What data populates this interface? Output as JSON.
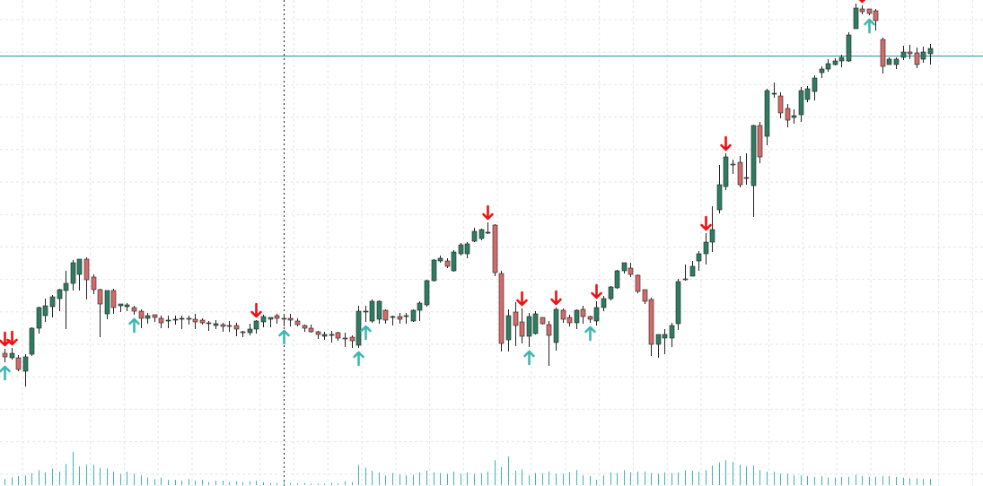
{
  "colors": {
    "background": "#ffffff",
    "grid": "#e6e6e6",
    "bull": "#2e7d62",
    "bear": "#d46a6a",
    "wick": "#222222",
    "volume": "#3fb3b8",
    "buy_arrow": "#3bb8b0",
    "sell_arrow": "#ee1111",
    "hline": "#2b8fb0",
    "session": "#222222"
  },
  "chart_data": {
    "type": "candlestick",
    "title": "",
    "xlabel": "",
    "ylabel": "",
    "grid": true,
    "ylim": [
      0,
      540
    ],
    "volume_max": 50,
    "hline": 480,
    "session_separators": [
      42,
      148
    ],
    "candles": [
      [
        1,
        148,
        144,
        153,
        138,
        8
      ],
      [
        2,
        143,
        148,
        154,
        141,
        10
      ],
      [
        3,
        143,
        130,
        146,
        128,
        12
      ],
      [
        4,
        128,
        144,
        147,
        111,
        13
      ],
      [
        5,
        147,
        176,
        177,
        145,
        16
      ],
      [
        6,
        176,
        199,
        200,
        170,
        20
      ],
      [
        7,
        190,
        201,
        209,
        183,
        17
      ],
      [
        8,
        200,
        211,
        213,
        188,
        22
      ],
      [
        9,
        209,
        219,
        220,
        195,
        18
      ],
      [
        10,
        218,
        226,
        240,
        175,
        28
      ],
      [
        11,
        226,
        249,
        252,
        218,
        44
      ],
      [
        12,
        236,
        253,
        253,
        218,
        25
      ],
      [
        13,
        253,
        230,
        255,
        208,
        27
      ],
      [
        14,
        233,
        219,
        236,
        214,
        27
      ],
      [
        15,
        219,
        203,
        220,
        166,
        23
      ],
      [
        16,
        192,
        218,
        218,
        186,
        22
      ],
      [
        17,
        218,
        199,
        220,
        192,
        18
      ],
      [
        18,
        201,
        203,
        202,
        194,
        15
      ],
      [
        19,
        200,
        202,
        204,
        195,
        18
      ],
      [
        20,
        199,
        195,
        201,
        191,
        15
      ],
      [
        21,
        195,
        187,
        197,
        176,
        13
      ],
      [
        22,
        187,
        190,
        193,
        181,
        10
      ],
      [
        23,
        191,
        188,
        191,
        183,
        8
      ],
      [
        24,
        187,
        182,
        190,
        176,
        10
      ],
      [
        25,
        184,
        185,
        190,
        176,
        7
      ],
      [
        26,
        185,
        186,
        190,
        180,
        7
      ],
      [
        27,
        186,
        187,
        190,
        175,
        6
      ],
      [
        28,
        187,
        186,
        190,
        180,
        8
      ],
      [
        29,
        186,
        183,
        192,
        175,
        6
      ],
      [
        30,
        185,
        182,
        187,
        180,
        7
      ],
      [
        31,
        182,
        181,
        184,
        173,
        4
      ],
      [
        32,
        179,
        181,
        185,
        175,
        6
      ],
      [
        33,
        180,
        178,
        182,
        172,
        6
      ],
      [
        34,
        179,
        178,
        184,
        172,
        4
      ],
      [
        35,
        179,
        175,
        182,
        167,
        5
      ],
      [
        36,
        172,
        171,
        173,
        166,
        4
      ],
      [
        37,
        171,
        175,
        181,
        168,
        5
      ],
      [
        38,
        175,
        184,
        185,
        170,
        6
      ],
      [
        39,
        183,
        189,
        191,
        177,
        4
      ],
      [
        40,
        186,
        188,
        188,
        177,
        3
      ],
      [
        41,
        190,
        187,
        192,
        181,
        3
      ],
      [
        42,
        187,
        186,
        191,
        178,
        4
      ],
      [
        43,
        187,
        185,
        192,
        178,
        3
      ],
      [
        44,
        184,
        180,
        187,
        178,
        2
      ],
      [
        45,
        179,
        176,
        180,
        172,
        3
      ],
      [
        46,
        176,
        172,
        180,
        171,
        2
      ],
      [
        47,
        172,
        169,
        173,
        164,
        2
      ],
      [
        48,
        167,
        169,
        172,
        163,
        2
      ],
      [
        49,
        169,
        169,
        173,
        160,
        3
      ],
      [
        50,
        171,
        165,
        172,
        162,
        2
      ],
      [
        51,
        165,
        164,
        171,
        155,
        5
      ],
      [
        52,
        166,
        162,
        168,
        154,
        4
      ],
      [
        53,
        157,
        195,
        201,
        154,
        27
      ],
      [
        54,
        195,
        195,
        201,
        183,
        23
      ],
      [
        55,
        184,
        206,
        208,
        182,
        19
      ],
      [
        56,
        186,
        206,
        207,
        181,
        17
      ],
      [
        57,
        196,
        185,
        197,
        181,
        13
      ],
      [
        58,
        189,
        189,
        190,
        179,
        16
      ],
      [
        59,
        189,
        186,
        193,
        181,
        14
      ],
      [
        60,
        189,
        190,
        193,
        181,
        13
      ],
      [
        61,
        184,
        196,
        197,
        183,
        14
      ],
      [
        62,
        196,
        204,
        206,
        184,
        17
      ],
      [
        63,
        202,
        229,
        230,
        200,
        19
      ],
      [
        64,
        229,
        252,
        253,
        228,
        17
      ],
      [
        65,
        251,
        254,
        257,
        249,
        16
      ],
      [
        66,
        251,
        245,
        254,
        243,
        15
      ],
      [
        67,
        240,
        261,
        263,
        239,
        18
      ],
      [
        68,
        259,
        269,
        271,
        257,
        15
      ],
      [
        69,
        259,
        270,
        272,
        254,
        17
      ],
      [
        70,
        273,
        284,
        288,
        272,
        15
      ],
      [
        71,
        276,
        286,
        287,
        274,
        16
      ],
      [
        72,
        283,
        283,
        294,
        281,
        18
      ],
      [
        73,
        291,
        238,
        292,
        234,
        33
      ],
      [
        74,
        237,
        159,
        240,
        150,
        24
      ],
      [
        75,
        163,
        190,
        197,
        150,
        38
      ],
      [
        76,
        194,
        179,
        205,
        156,
        19
      ],
      [
        77,
        183,
        167,
        198,
        159,
        21
      ],
      [
        78,
        167,
        189,
        193,
        155,
        13
      ],
      [
        79,
        170,
        192,
        195,
        169,
        16
      ],
      [
        80,
        188,
        181,
        185,
        180,
        16
      ],
      [
        81,
        180,
        168,
        184,
        134,
        18
      ],
      [
        82,
        160,
        197,
        199,
        151,
        15
      ],
      [
        83,
        196,
        186,
        198,
        182,
        15
      ],
      [
        84,
        188,
        182,
        191,
        178,
        17
      ],
      [
        85,
        182,
        196,
        197,
        175,
        20
      ],
      [
        86,
        197,
        189,
        201,
        181,
        13
      ],
      [
        87,
        189,
        186,
        190,
        182,
        12
      ],
      [
        88,
        184,
        199,
        206,
        179,
        7
      ],
      [
        89,
        199,
        209,
        212,
        195,
        13
      ],
      [
        90,
        209,
        222,
        223,
        207,
        17
      ],
      [
        91,
        221,
        240,
        241,
        220,
        16
      ],
      [
        92,
        240,
        249,
        249,
        237,
        20
      ],
      [
        93,
        243,
        236,
        249,
        233,
        17
      ],
      [
        94,
        235,
        217,
        236,
        215,
        18
      ],
      [
        95,
        219,
        206,
        212,
        203,
        18
      ],
      [
        96,
        208,
        158,
        210,
        145,
        16
      ],
      [
        97,
        158,
        169,
        169,
        143,
        15
      ],
      [
        98,
        165,
        169,
        175,
        147,
        17
      ],
      [
        99,
        165,
        179,
        182,
        155,
        16
      ],
      [
        100,
        181,
        228,
        231,
        174,
        17
      ],
      [
        101,
        231,
        230,
        247,
        229,
        20
      ],
      [
        102,
        234,
        245,
        251,
        240,
        19
      ],
      [
        103,
        251,
        259,
        262,
        240,
        18
      ],
      [
        104,
        259,
        272,
        282,
        247,
        20
      ],
      [
        105,
        272,
        286,
        312,
        261,
        26
      ],
      [
        106,
        308,
        336,
        358,
        304,
        30
      ],
      [
        107,
        334,
        367,
        371,
        330,
        33
      ],
      [
        108,
        359,
        358,
        364,
        348,
        31
      ],
      [
        109,
        361,
        336,
        368,
        333,
        27
      ],
      [
        110,
        343,
        344,
        371,
        336,
        25
      ],
      [
        111,
        335,
        402,
        403,
        300,
        26
      ],
      [
        112,
        402,
        367,
        406,
        360,
        20
      ],
      [
        113,
        390,
        441,
        443,
        380,
        18
      ],
      [
        114,
        438,
        438,
        450,
        433,
        18
      ],
      [
        115,
        435,
        416,
        439,
        410,
        15
      ],
      [
        116,
        421,
        408,
        426,
        400,
        15
      ],
      [
        117,
        411,
        413,
        420,
        404,
        13
      ],
      [
        118,
        414,
        441,
        445,
        406,
        13
      ],
      [
        119,
        431,
        443,
        446,
        428,
        12
      ],
      [
        120,
        440,
        455,
        458,
        430,
        11
      ],
      [
        121,
        461,
        465,
        468,
        455,
        12
      ],
      [
        122,
        465,
        471,
        476,
        462,
        10
      ],
      [
        123,
        470,
        474,
        477,
        469,
        10
      ],
      [
        124,
        474,
        478,
        481,
        467,
        11
      ],
      [
        125,
        474,
        503,
        506,
        473,
        11
      ],
      [
        126,
        510,
        533,
        538,
        510,
        14
      ],
      [
        127,
        532,
        529,
        536,
        526,
        12
      ],
      [
        128,
        532,
        527,
        532,
        525,
        11
      ],
      [
        129,
        530,
        519,
        532,
        508,
        11
      ],
      [
        130,
        498,
        468,
        500,
        460,
        12
      ],
      [
        131,
        470,
        476,
        478,
        470,
        12
      ],
      [
        132,
        470,
        476,
        478,
        465,
        11
      ],
      [
        133,
        478,
        484,
        491,
        475,
        10
      ],
      [
        134,
        484,
        482,
        492,
        476,
        9
      ],
      [
        135,
        483,
        470,
        489,
        466,
        9
      ],
      [
        136,
        476,
        484,
        490,
        472,
        8
      ],
      [
        137,
        482,
        488,
        493,
        470,
        8
      ]
    ],
    "buy_signals": [
      1,
      20,
      42,
      53,
      54,
      78,
      87,
      128
    ],
    "sell_signals": [
      1,
      2,
      38,
      72,
      77,
      82,
      88,
      104,
      107,
      127
    ]
  }
}
